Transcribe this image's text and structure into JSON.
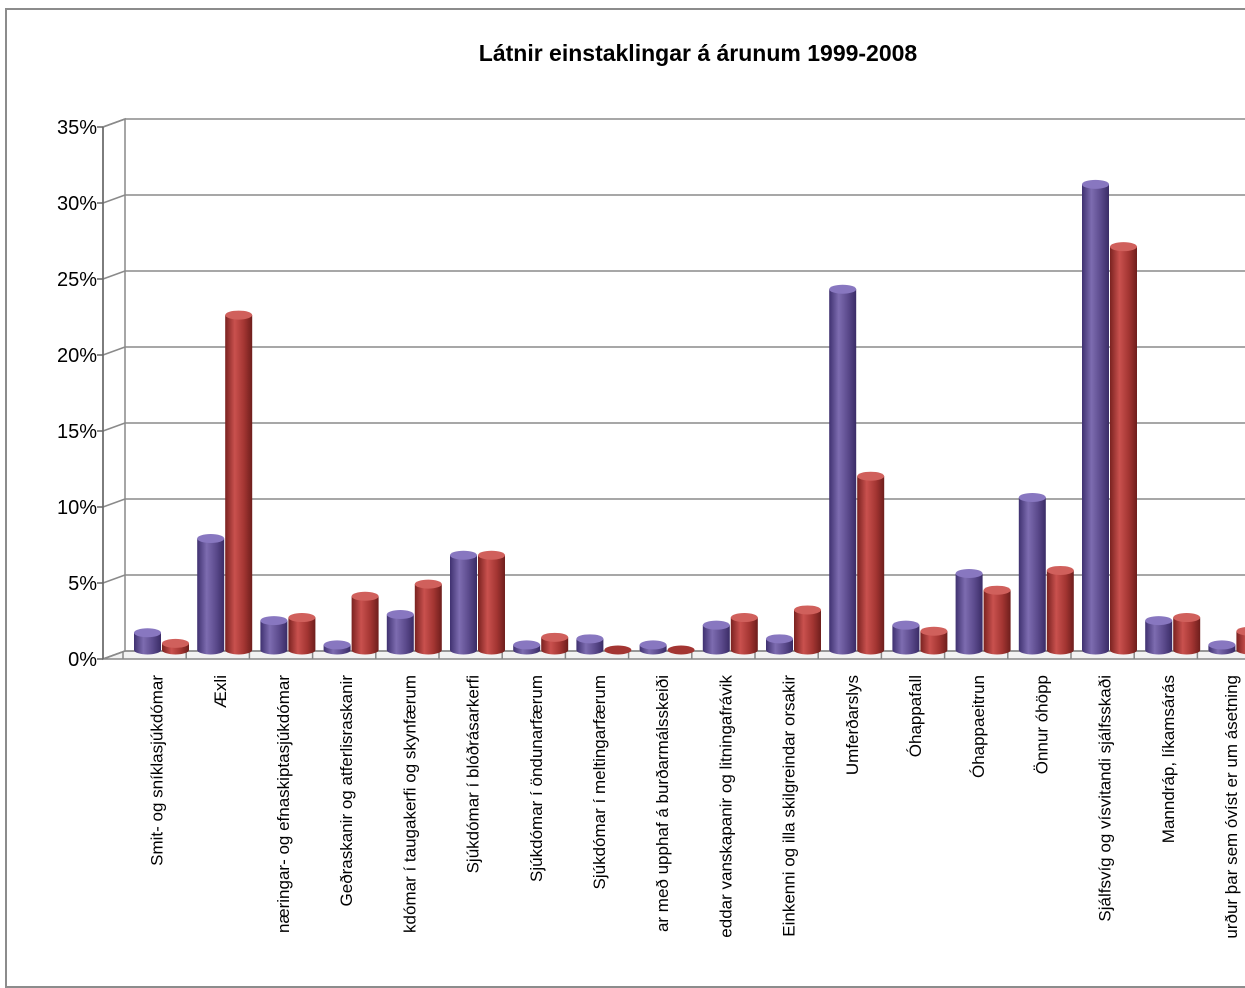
{
  "chart_data": {
    "type": "bar",
    "title": "Látnir einstaklingar á árunum 1999-2008",
    "xlabel": "",
    "ylabel": "",
    "ylim": [
      0,
      35
    ],
    "y_ticks": [
      "0%",
      "5%",
      "10%",
      "15%",
      "20%",
      "25%",
      "30%",
      "35%"
    ],
    "y_tick_values": [
      0,
      5,
      10,
      15,
      20,
      25,
      30,
      35
    ],
    "grid": true,
    "categories": [
      "Smit- og sníklasjúkdómar",
      "Æxli",
      "næringar- og efnaskiptasjúkdómar",
      "Geðraskanir og atferlisraskanir",
      "kdómar í taugakerfi og skynfærum",
      "Sjúkdómar í blóðrásarkerfi",
      "Sjúkdómar í öndunarfærum",
      "Sjúkdómar í meltingarfærum",
      "ar með upphaf á burðarmálsskeiði",
      "eddar vanskapanir og litningafrávik",
      "Einkenni og illa skilgreindar orsakir",
      "Umferðarslys",
      "Óhappafall",
      "Óhappaeitrun",
      "Önnur óhöpp",
      "Sjálfsvíg og vísvitandi sjálfsskaði",
      "Manndráp, líkamsárás",
      "urður þar sem óvíst er um ásetning"
    ],
    "series": [
      {
        "color": "#5b4a8c",
        "values": [
          1.2,
          7.4,
          2.0,
          0.4,
          2.4,
          6.3,
          0.4,
          0.8,
          0.4,
          1.7,
          0.8,
          23.8,
          1.7,
          5.1,
          10.1,
          30.7,
          2.0,
          0.4
        ]
      },
      {
        "color": "#a33532",
        "values": [
          0.5,
          22.1,
          2.2,
          3.6,
          4.4,
          6.3,
          0.9,
          0.0,
          0.0,
          2.2,
          2.7,
          11.5,
          1.3,
          4.0,
          5.3,
          26.6,
          2.2,
          1.3
        ]
      }
    ]
  }
}
